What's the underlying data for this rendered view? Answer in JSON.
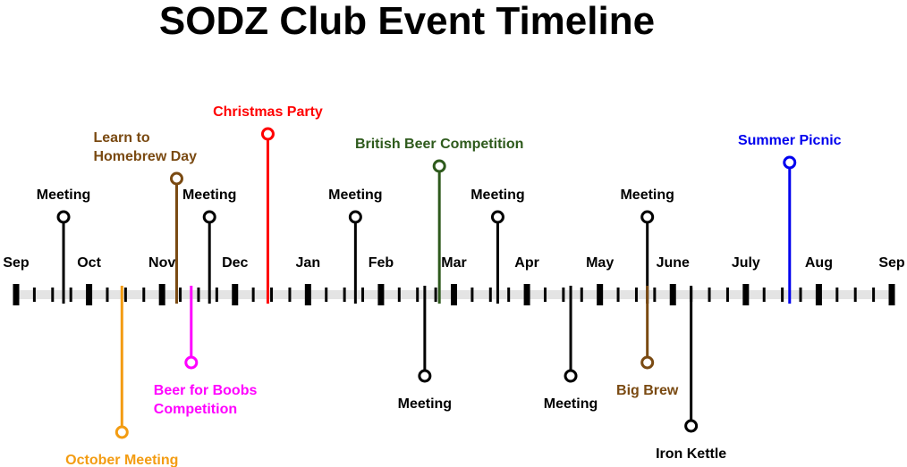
{
  "title": "SODZ Club Event Timeline",
  "colors": {
    "black": "#000000",
    "orange": "#f39c12",
    "brown": "#7a4a12",
    "red": "#ff0000",
    "magenta": "#ff00ff",
    "green": "#2e5a1c",
    "blue": "#0000ee",
    "band": "#e4e4e4"
  },
  "months": [
    "Sep",
    "Oct",
    "Nov",
    "Dec",
    "Jan",
    "Feb",
    "Mar",
    "Apr",
    "May",
    "June",
    "July",
    "Aug",
    "Sep"
  ],
  "events": [
    {
      "label": [
        "Meeting"
      ],
      "color": "black",
      "side": "above",
      "month": 0.65,
      "level": 1
    },
    {
      "label": [
        "October Meeting"
      ],
      "color": "orange",
      "side": "below",
      "month": 1.45,
      "level": 3
    },
    {
      "label": [
        "Learn to",
        "Homebrew Day"
      ],
      "color": "brown",
      "side": "above",
      "month": 2.2,
      "level": 3
    },
    {
      "label": [
        "Meeting"
      ],
      "color": "black",
      "side": "above",
      "month": 2.65,
      "level": 1
    },
    {
      "label": [
        "Beer for Boobs",
        "Competition"
      ],
      "color": "magenta",
      "side": "below",
      "month": 2.4,
      "level": 1
    },
    {
      "label": [
        "Christmas Party"
      ],
      "color": "red",
      "side": "above",
      "month": 3.45,
      "level": 4
    },
    {
      "label": [
        "Meeting"
      ],
      "color": "black",
      "side": "above",
      "month": 4.65,
      "level": 1
    },
    {
      "label": [
        "Meeting"
      ],
      "color": "black",
      "side": "below",
      "month": 5.6,
      "level": 2
    },
    {
      "label": [
        "British Beer Competition"
      ],
      "color": "green",
      "side": "above",
      "month": 5.8,
      "level": 2
    },
    {
      "label": [
        "Meeting"
      ],
      "color": "black",
      "side": "above",
      "month": 6.6,
      "level": 1
    },
    {
      "label": [
        "Meeting"
      ],
      "color": "black",
      "side": "below",
      "month": 7.6,
      "level": 2
    },
    {
      "label": [
        "Meeting"
      ],
      "color": "black",
      "side": "above",
      "month": 8.65,
      "level": 1
    },
    {
      "label": [
        "Big Brew"
      ],
      "color": "brown",
      "side": "below",
      "month": 8.65,
      "level": 1
    },
    {
      "label": [
        "Iron Kettle"
      ],
      "color": "black",
      "side": "below",
      "month": 9.25,
      "level": 3
    },
    {
      "label": [
        "Summer Picnic"
      ],
      "color": "blue",
      "side": "above",
      "month": 10.6,
      "level": 3
    }
  ]
}
